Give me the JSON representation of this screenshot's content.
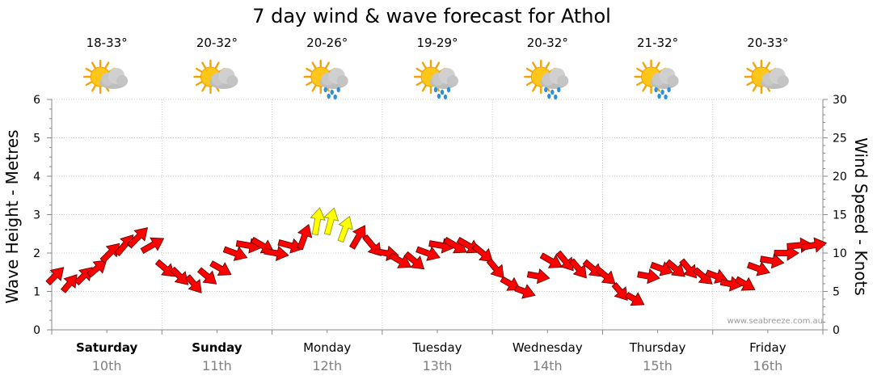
{
  "chart_data": {
    "type": "line",
    "title": "7 day wind & wave forecast for Athol",
    "ylabel_left": "Wave Height - Metres",
    "ylabel_right": "Wind Speed - Knots",
    "ylim_left": [
      0,
      6
    ],
    "ylim_right": [
      0,
      30
    ],
    "yticks_left": [
      "0",
      "1",
      "2",
      "3",
      "4",
      "5",
      "6"
    ],
    "yticks_right": [
      "0",
      "5",
      "10",
      "15",
      "20",
      "25",
      "30"
    ],
    "grid": true,
    "credit": "www.seabreeze.com.au",
    "days": [
      {
        "name": "Saturday",
        "date": "10th",
        "temp": "18-33°",
        "icon": "partly-cloudy-icon",
        "bold": true
      },
      {
        "name": "Sunday",
        "date": "11th",
        "temp": "20-32°",
        "icon": "partly-cloudy-icon",
        "bold": true
      },
      {
        "name": "Monday",
        "date": "12th",
        "temp": "20-26°",
        "icon": "showers-icon",
        "bold": false
      },
      {
        "name": "Tuesday",
        "date": "13th",
        "temp": "19-29°",
        "icon": "showers-icon",
        "bold": false
      },
      {
        "name": "Wednesday",
        "date": "14th",
        "temp": "20-32°",
        "icon": "showers-icon",
        "bold": false
      },
      {
        "name": "Thursday",
        "date": "15th",
        "temp": "21-32°",
        "icon": "showers-icon",
        "bold": false
      },
      {
        "name": "Friday",
        "date": "16th",
        "temp": "20-33°",
        "icon": "partly-cloudy-icon",
        "bold": false
      }
    ],
    "series": [
      {
        "name": "Wind",
        "x_days": [
          0,
          0.13,
          0.26,
          0.38,
          0.5,
          0.63,
          0.75,
          0.88,
          1,
          1.13,
          1.26,
          1.38,
          1.5,
          1.63,
          1.75,
          1.88,
          2,
          2.13,
          2.26,
          2.38,
          2.5,
          2.63,
          2.75,
          2.88,
          3,
          3.13,
          3.26,
          3.38,
          3.5,
          3.63,
          3.75,
          3.88,
          4,
          4.13,
          4.26,
          4.38,
          4.5,
          4.63,
          4.75,
          4.88,
          5,
          5.13,
          5.26,
          5.38,
          5.5,
          5.63,
          5.75,
          5.88,
          6,
          6.13,
          6.26,
          6.38,
          6.5,
          6.63,
          6.75,
          6.88
        ],
        "values": [
          7,
          6,
          7,
          8,
          10,
          11,
          12,
          11,
          8,
          7,
          6,
          7,
          8,
          10,
          11,
          11,
          10,
          11,
          12,
          14,
          14,
          13,
          12,
          11,
          10,
          9,
          9,
          10,
          11,
          11,
          11,
          10,
          8,
          6,
          5,
          7,
          9,
          9,
          8,
          8,
          7,
          5,
          4,
          7,
          8,
          8,
          8,
          7,
          7,
          6,
          6,
          8,
          9,
          10,
          11,
          11
        ],
        "dir_deg": [
          225,
          220,
          225,
          230,
          225,
          220,
          225,
          240,
          310,
          315,
          320,
          310,
          300,
          290,
          280,
          300,
          280,
          285,
          200,
          190,
          195,
          200,
          210,
          320,
          280,
          300,
          310,
          290,
          280,
          300,
          300,
          310,
          320,
          300,
          290,
          280,
          300,
          320,
          320,
          310,
          310,
          320,
          300,
          280,
          290,
          310,
          320,
          310,
          290,
          280,
          300,
          290,
          280,
          270,
          265,
          260
        ],
        "strong_threshold": 13
      }
    ]
  }
}
